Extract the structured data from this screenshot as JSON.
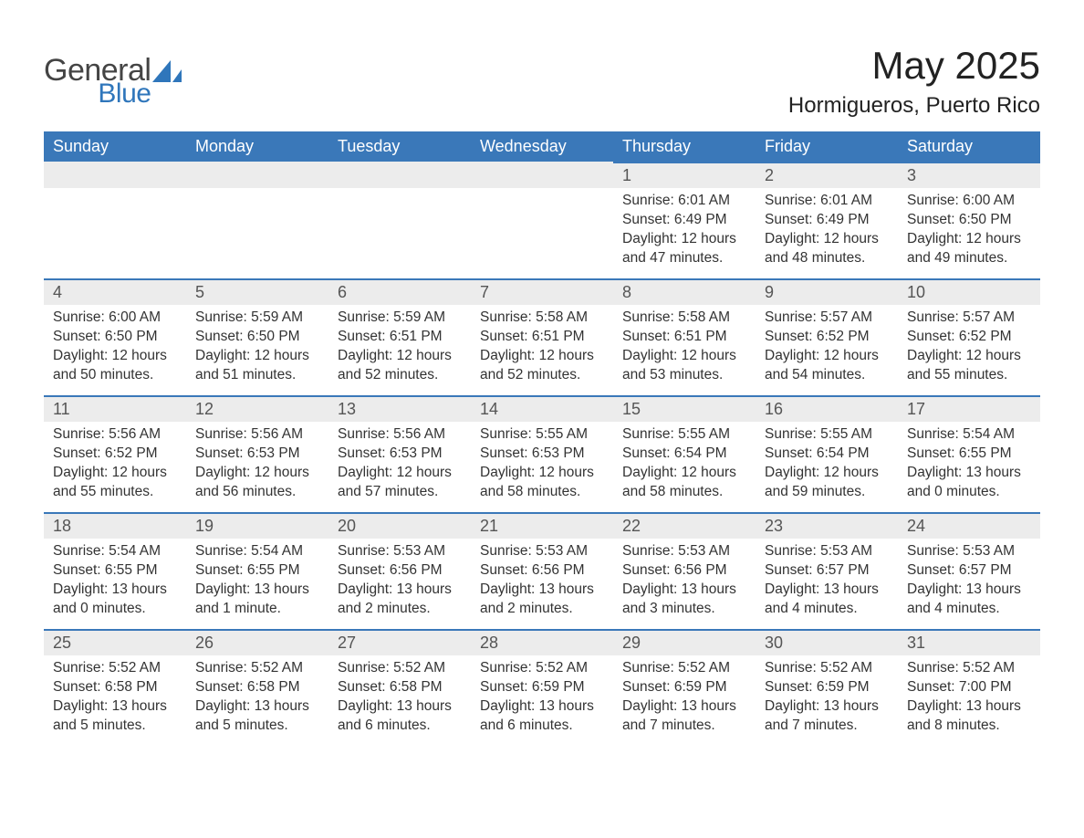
{
  "logo": {
    "word1": "General",
    "word2": "Blue"
  },
  "title": "May 2025",
  "location": "Hormigueros, Puerto Rico",
  "colors": {
    "header_bg": "#3a78b9",
    "header_text": "#ffffff",
    "daynum_bg": "#ececec",
    "daynum_border": "#3a78b9",
    "body_text": "#333333",
    "logo_gray": "#444444",
    "logo_blue": "#2f76bb",
    "page_bg": "#ffffff"
  },
  "typography": {
    "title_fontsize": 42,
    "location_fontsize": 24,
    "header_fontsize": 18,
    "daynum_fontsize": 18,
    "body_fontsize": 15.5,
    "logo_fontsize": 34
  },
  "weekdays": [
    "Sunday",
    "Monday",
    "Tuesday",
    "Wednesday",
    "Thursday",
    "Friday",
    "Saturday"
  ],
  "leading_blanks": 4,
  "days": [
    {
      "n": 1,
      "sunrise": "6:01 AM",
      "sunset": "6:49 PM",
      "daylight": "12 hours and 47 minutes."
    },
    {
      "n": 2,
      "sunrise": "6:01 AM",
      "sunset": "6:49 PM",
      "daylight": "12 hours and 48 minutes."
    },
    {
      "n": 3,
      "sunrise": "6:00 AM",
      "sunset": "6:50 PM",
      "daylight": "12 hours and 49 minutes."
    },
    {
      "n": 4,
      "sunrise": "6:00 AM",
      "sunset": "6:50 PM",
      "daylight": "12 hours and 50 minutes."
    },
    {
      "n": 5,
      "sunrise": "5:59 AM",
      "sunset": "6:50 PM",
      "daylight": "12 hours and 51 minutes."
    },
    {
      "n": 6,
      "sunrise": "5:59 AM",
      "sunset": "6:51 PM",
      "daylight": "12 hours and 52 minutes."
    },
    {
      "n": 7,
      "sunrise": "5:58 AM",
      "sunset": "6:51 PM",
      "daylight": "12 hours and 52 minutes."
    },
    {
      "n": 8,
      "sunrise": "5:58 AM",
      "sunset": "6:51 PM",
      "daylight": "12 hours and 53 minutes."
    },
    {
      "n": 9,
      "sunrise": "5:57 AM",
      "sunset": "6:52 PM",
      "daylight": "12 hours and 54 minutes."
    },
    {
      "n": 10,
      "sunrise": "5:57 AM",
      "sunset": "6:52 PM",
      "daylight": "12 hours and 55 minutes."
    },
    {
      "n": 11,
      "sunrise": "5:56 AM",
      "sunset": "6:52 PM",
      "daylight": "12 hours and 55 minutes."
    },
    {
      "n": 12,
      "sunrise": "5:56 AM",
      "sunset": "6:53 PM",
      "daylight": "12 hours and 56 minutes."
    },
    {
      "n": 13,
      "sunrise": "5:56 AM",
      "sunset": "6:53 PM",
      "daylight": "12 hours and 57 minutes."
    },
    {
      "n": 14,
      "sunrise": "5:55 AM",
      "sunset": "6:53 PM",
      "daylight": "12 hours and 58 minutes."
    },
    {
      "n": 15,
      "sunrise": "5:55 AM",
      "sunset": "6:54 PM",
      "daylight": "12 hours and 58 minutes."
    },
    {
      "n": 16,
      "sunrise": "5:55 AM",
      "sunset": "6:54 PM",
      "daylight": "12 hours and 59 minutes."
    },
    {
      "n": 17,
      "sunrise": "5:54 AM",
      "sunset": "6:55 PM",
      "daylight": "13 hours and 0 minutes."
    },
    {
      "n": 18,
      "sunrise": "5:54 AM",
      "sunset": "6:55 PM",
      "daylight": "13 hours and 0 minutes."
    },
    {
      "n": 19,
      "sunrise": "5:54 AM",
      "sunset": "6:55 PM",
      "daylight": "13 hours and 1 minute."
    },
    {
      "n": 20,
      "sunrise": "5:53 AM",
      "sunset": "6:56 PM",
      "daylight": "13 hours and 2 minutes."
    },
    {
      "n": 21,
      "sunrise": "5:53 AM",
      "sunset": "6:56 PM",
      "daylight": "13 hours and 2 minutes."
    },
    {
      "n": 22,
      "sunrise": "5:53 AM",
      "sunset": "6:56 PM",
      "daylight": "13 hours and 3 minutes."
    },
    {
      "n": 23,
      "sunrise": "5:53 AM",
      "sunset": "6:57 PM",
      "daylight": "13 hours and 4 minutes."
    },
    {
      "n": 24,
      "sunrise": "5:53 AM",
      "sunset": "6:57 PM",
      "daylight": "13 hours and 4 minutes."
    },
    {
      "n": 25,
      "sunrise": "5:52 AM",
      "sunset": "6:58 PM",
      "daylight": "13 hours and 5 minutes."
    },
    {
      "n": 26,
      "sunrise": "5:52 AM",
      "sunset": "6:58 PM",
      "daylight": "13 hours and 5 minutes."
    },
    {
      "n": 27,
      "sunrise": "5:52 AM",
      "sunset": "6:58 PM",
      "daylight": "13 hours and 6 minutes."
    },
    {
      "n": 28,
      "sunrise": "5:52 AM",
      "sunset": "6:59 PM",
      "daylight": "13 hours and 6 minutes."
    },
    {
      "n": 29,
      "sunrise": "5:52 AM",
      "sunset": "6:59 PM",
      "daylight": "13 hours and 7 minutes."
    },
    {
      "n": 30,
      "sunrise": "5:52 AM",
      "sunset": "6:59 PM",
      "daylight": "13 hours and 7 minutes."
    },
    {
      "n": 31,
      "sunrise": "5:52 AM",
      "sunset": "7:00 PM",
      "daylight": "13 hours and 8 minutes."
    }
  ],
  "labels": {
    "sunrise": "Sunrise: ",
    "sunset": "Sunset: ",
    "daylight": "Daylight: "
  }
}
